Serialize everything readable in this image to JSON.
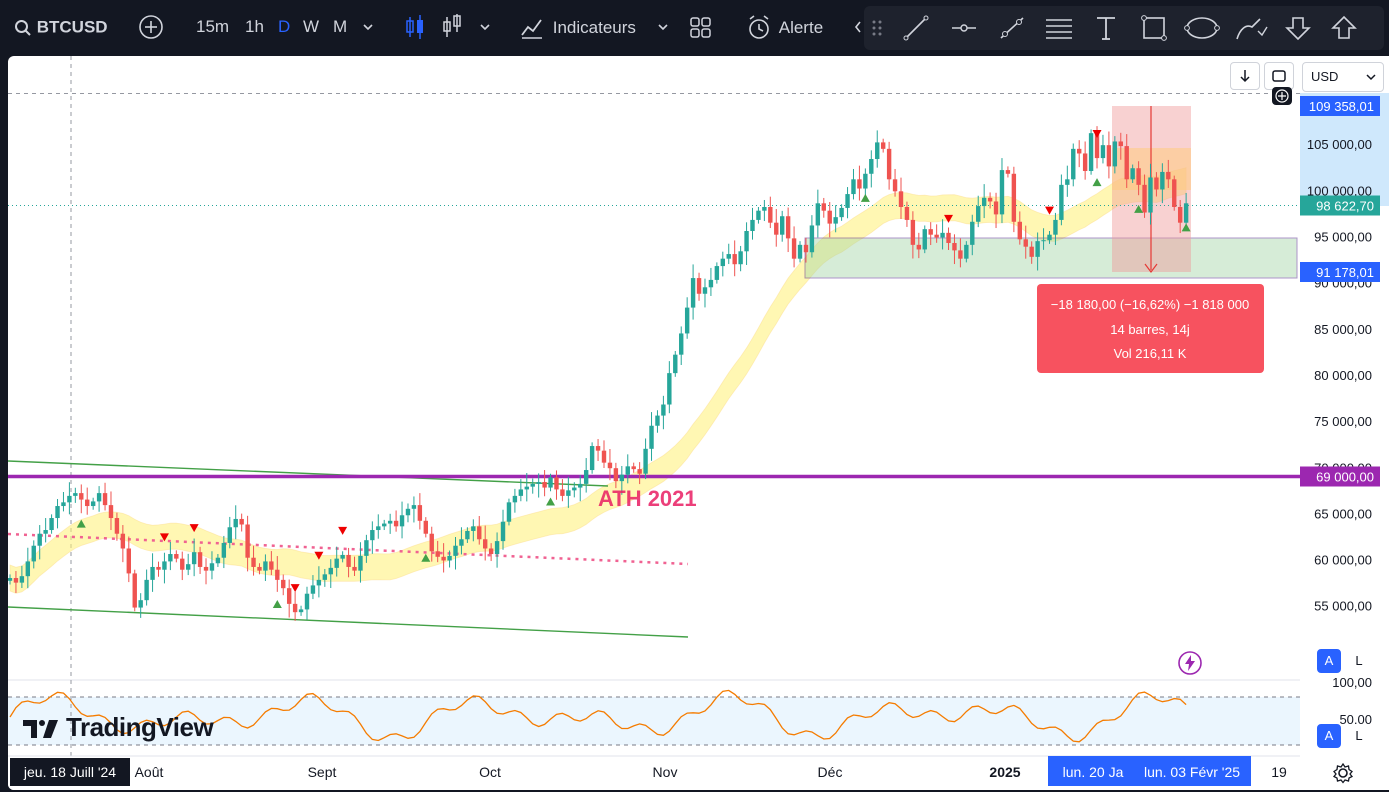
{
  "toolbar": {
    "symbol": "BTCUSD",
    "intervals": [
      "15m",
      "1h",
      "D",
      "W",
      "M"
    ],
    "active_interval": "D",
    "indicators_label": "Indicateurs",
    "alert_label": "Alerte"
  },
  "drawing_tools": [
    "trend-line-icon",
    "horizontal-ray-icon",
    "channel-icon",
    "fib-icon",
    "text-icon",
    "rectangle-icon",
    "ellipse-icon",
    "brush-icon",
    "arrow-down-icon",
    "arrow-up-icon"
  ],
  "chart_header": {
    "download_icon": "arrow-down-icon",
    "currency": "USD"
  },
  "watermark": "TradingView",
  "scale_buttons": {
    "auto": "A",
    "log": "L"
  },
  "price_labels": {
    "high": "109 358,01",
    "last": "98 622,70",
    "low_box": "91 178,01",
    "ath_level": "69 000,00"
  },
  "measure": {
    "line1": "−18 180,00 (−16,62%) −1 818 000",
    "line2": "14 barres, 14j",
    "line3": "Vol 216,11 K"
  },
  "annotation_text": "ATH 2021",
  "oscillator_axis": [
    "100,00",
    "50,00"
  ],
  "time_axis": {
    "crosshair_label": "jeu. 18 Juill '24",
    "ticks": [
      "Août",
      "Sept",
      "Oct",
      "Nov",
      "Déc",
      "2025",
      "19"
    ],
    "range_labels": [
      "lun. 20 Ja",
      "lun. 03 Févr '25"
    ]
  },
  "colors": {
    "up": "#26a69a",
    "down": "#ef5350",
    "ath_line": "#9c27b0",
    "band": "#fff176",
    "measure": "#f7525f"
  },
  "chart_data": {
    "type": "candlestick",
    "instrument": "BTCUSD",
    "interval": "D",
    "currency": "USD",
    "ylim": [
      50000,
      112000
    ],
    "y_ticks": [
      55000,
      60000,
      65000,
      70000,
      75000,
      80000,
      85000,
      90000,
      95000,
      100000,
      105000
    ],
    "y_tick_labels": [
      "55 000,00",
      "60 000,00",
      "65 000,00",
      "70 000,00",
      "75 000,00",
      "80 000,00",
      "85 000,00",
      "90 000,00",
      "95 000,00",
      "100 000,00",
      "105 000,00"
    ],
    "ath_level": 69000,
    "last_price": 98622.7,
    "period_high": 109358.01,
    "measure_low": 91178.01,
    "measure_change": -18180.0,
    "measure_change_pct": -16.62,
    "measure_bars": 14,
    "series": [
      {
        "name": "",
        "close": [
          58000,
          57500,
          58200,
          59800,
          61500,
          62800,
          63200,
          64500,
          65800,
          66200,
          66900,
          67200,
          66500,
          65800,
          66300,
          67200,
          65900,
          64500,
          62800,
          61200,
          58500,
          54800,
          55600,
          57800,
          59200,
          58900,
          59800,
          60600,
          60100,
          58900,
          59500,
          60800,
          59200,
          58800,
          59600,
          60200,
          61800,
          63500,
          64400,
          63800,
          60200,
          59200,
          58800,
          59800,
          58900,
          57800,
          56900,
          55200,
          54300,
          54600,
          56300,
          57200,
          57800,
          58400,
          59100,
          60100,
          60500,
          59200,
          58800,
          60400,
          62100,
          63200,
          63600,
          63900,
          64200,
          63600,
          64800,
          65500,
          65900,
          64200,
          62800,
          60900,
          60300,
          59900,
          60400,
          61500,
          62200,
          63100,
          63600,
          62200,
          61200,
          60600,
          62000,
          64100,
          66200,
          66900,
          67600,
          67900,
          68200,
          68400,
          67800,
          68900,
          67600,
          66900,
          67500,
          67800,
          68200,
          69700,
          72300,
          71800,
          70500,
          69900,
          68500,
          69200,
          70100,
          69800,
          69300,
          72000,
          74500,
          75600,
          76800,
          80200,
          82200,
          84500,
          87300,
          90500,
          88800,
          89500,
          90300,
          91800,
          92600,
          93100,
          92000,
          93400,
          95600,
          96800,
          97800,
          98200,
          96500,
          95200,
          97200,
          94800,
          92600,
          94100,
          93300,
          96200,
          98600,
          97800,
          96400,
          97100,
          98100,
          99600,
          101200,
          100200,
          101800,
          103400,
          105200,
          104500,
          101200,
          99900,
          98200,
          96800,
          94100,
          93600,
          95800,
          95200,
          94900,
          95400,
          94300,
          93500,
          92600,
          94100,
          96600,
          98300,
          99200,
          98800,
          97400,
          102200,
          101800,
          96600,
          94700,
          93900,
          92800,
          94500,
          94600,
          95200,
          96800,
          100600,
          101200,
          104500,
          104000,
          102100,
          106200,
          103500,
          104900,
          102600,
          105300,
          104800,
          101200,
          102400,
          100600,
          97600,
          101400,
          100100,
          102000,
          101200,
          98200,
          96500,
          98600
        ]
      }
    ]
  }
}
